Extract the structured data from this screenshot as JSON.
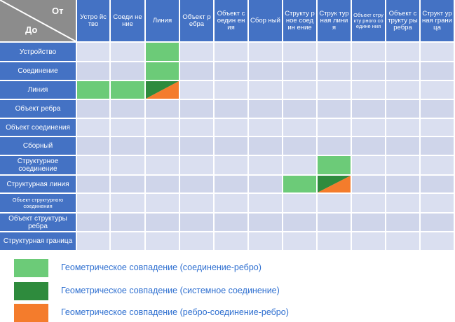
{
  "colors": {
    "header": "#4472c4",
    "cell": "#dadff0",
    "cell_alt": "#cfd5ea",
    "light_green": "#6ccb78",
    "dark_green": "#2e8b3d",
    "orange": "#f47c2c",
    "legend_text": "#2e6fd0"
  },
  "corner": {
    "from_label": "От",
    "to_label": "До"
  },
  "columns": [
    "Устро йство",
    "Соеди нение",
    "Линия",
    "Объект ребра",
    "Объект соедин ения",
    "Сбор ный",
    "Структу рное соедин ение",
    "Струк турная линия",
    "Объект структу рного соедине ния",
    "Объект структу ры ребра",
    "Структ урная грани ца"
  ],
  "rows": [
    "Устройство",
    "Соединение",
    "Линия",
    "Объект ребра",
    "Объект соединения",
    "Сборный",
    "Структурное соединение",
    "Структурная линия",
    "Объект структурного соединения",
    "Объект структуры ребра",
    "Структурная граница"
  ],
  "filled_cells": [
    {
      "row": 0,
      "col": 2,
      "type": "lg"
    },
    {
      "row": 1,
      "col": 2,
      "type": "lg"
    },
    {
      "row": 2,
      "col": 0,
      "type": "lg"
    },
    {
      "row": 2,
      "col": 1,
      "type": "lg"
    },
    {
      "row": 2,
      "col": 2,
      "type": "dg_or"
    },
    {
      "row": 6,
      "col": 7,
      "type": "lg"
    },
    {
      "row": 7,
      "col": 6,
      "type": "lg"
    },
    {
      "row": 7,
      "col": 7,
      "type": "dg_or"
    }
  ],
  "legend": [
    {
      "swatch": "light_green",
      "label": "Геометрическое совпадение (соединение-ребро)"
    },
    {
      "swatch": "dark_green",
      "label": "Геометрическое совпадение (системное соединение)"
    },
    {
      "swatch": "orange",
      "label": "Геометрическое совпадение (ребро-соединение-ребро)"
    }
  ]
}
